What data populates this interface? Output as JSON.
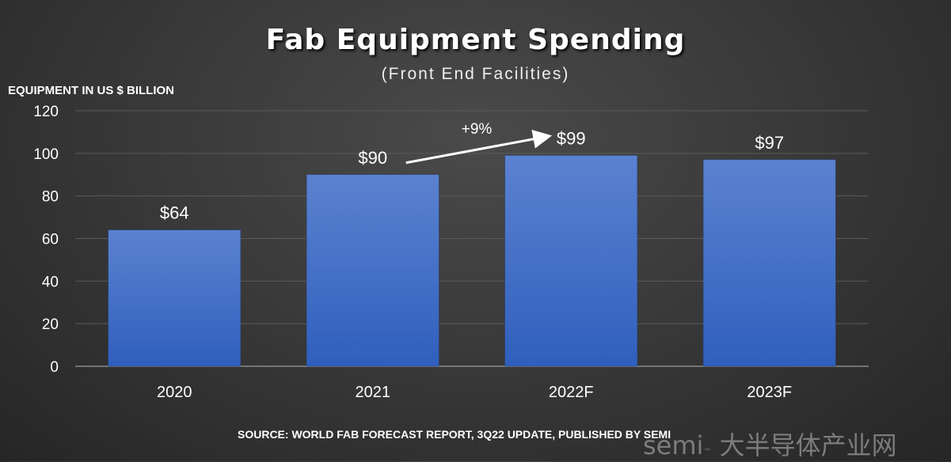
{
  "chart_data": {
    "type": "bar",
    "title": "Fab Equipment Spending",
    "subtitle": "(Front End Facilities)",
    "ylabel": "EQUIPMENT IN US $ BILLION",
    "xlabel": "",
    "categories": [
      "2020",
      "2021",
      "2022F",
      "2023F"
    ],
    "values": [
      64,
      90,
      99,
      97
    ],
    "data_labels": [
      "$64",
      "$90",
      "$99",
      "$97"
    ],
    "ylim": [
      0,
      120
    ],
    "yticks": [
      0,
      20,
      40,
      60,
      80,
      100,
      120
    ],
    "grid": true,
    "annotation": {
      "text": "+9%",
      "from": "2021",
      "to": "2022F"
    },
    "bar_color": "#4472c4",
    "source": "SOURCE: WORLD FAB FORECAST REPORT, 3Q22 UPDATE, PUBLISHED BY SEMI"
  },
  "watermark": "semi 大半导体产业网"
}
